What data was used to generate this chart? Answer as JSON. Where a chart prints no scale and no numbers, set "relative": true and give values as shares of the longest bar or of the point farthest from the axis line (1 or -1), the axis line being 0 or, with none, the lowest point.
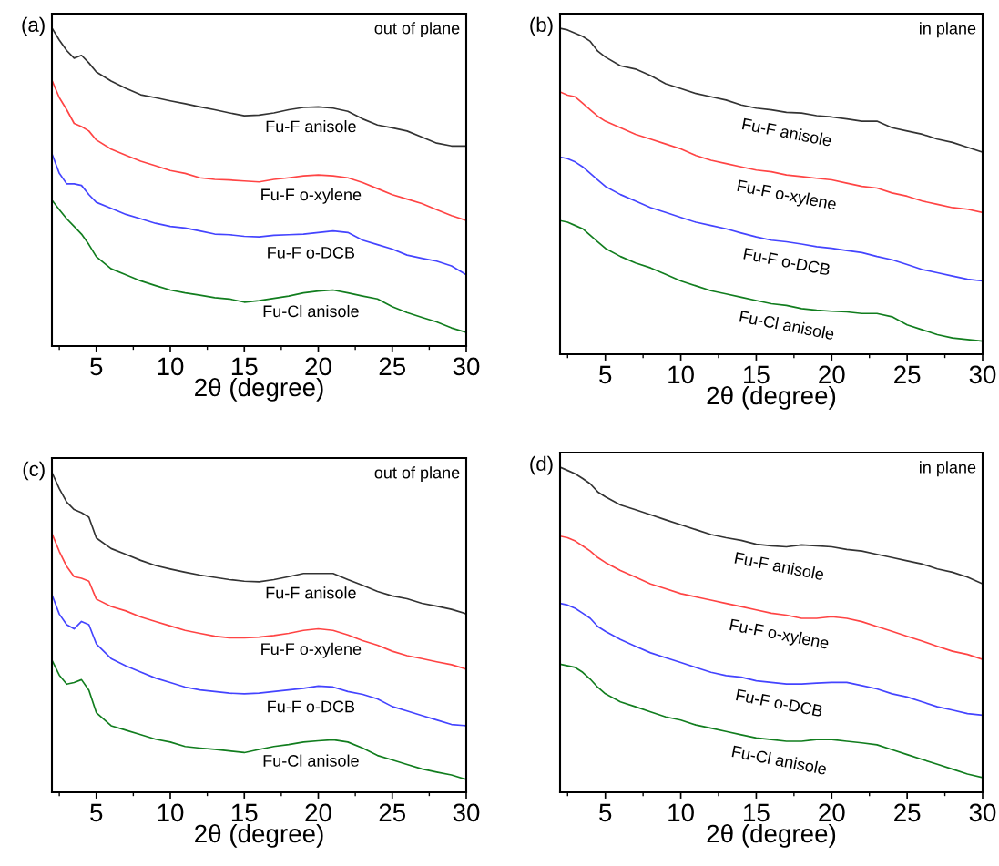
{
  "chart_data": [
    {
      "type": "line",
      "relative": true,
      "xlabel": "2θ (degree)",
      "annotations": [
        "(a)",
        "out of plane"
      ],
      "xlim": [
        2,
        30
      ],
      "xticks": [
        5,
        10,
        15,
        20,
        25,
        30
      ],
      "tick_labels": "x",
      "grid": false,
      "legend": false,
      "x": [
        2,
        2.5,
        3,
        3.5,
        4,
        4.5,
        5,
        6,
        7,
        8,
        9,
        10,
        11,
        12,
        13,
        14,
        15,
        16,
        17,
        18,
        19,
        20,
        21,
        22,
        23,
        24,
        25,
        26,
        27,
        28,
        29,
        30
      ],
      "series": [
        {
          "name": "Fu-F anisole",
          "color": "#333333",
          "values": [
            1.0,
            0.962,
            0.929,
            0.905,
            0.914,
            0.89,
            0.862,
            0.833,
            0.81,
            0.79,
            0.781,
            0.771,
            0.762,
            0.752,
            0.743,
            0.733,
            0.724,
            0.726,
            0.733,
            0.743,
            0.75,
            0.752,
            0.748,
            0.738,
            0.714,
            0.695,
            0.686,
            0.676,
            0.657,
            0.638,
            0.629,
            0.629
          ]
        },
        {
          "name": "Fu-F o-xylene",
          "color": "#ff4444",
          "values": [
            0.836,
            0.781,
            0.743,
            0.7,
            0.69,
            0.676,
            0.648,
            0.619,
            0.6,
            0.581,
            0.567,
            0.552,
            0.543,
            0.529,
            0.524,
            0.522,
            0.519,
            0.516,
            0.524,
            0.529,
            0.535,
            0.538,
            0.535,
            0.529,
            0.514,
            0.495,
            0.476,
            0.462,
            0.448,
            0.429,
            0.41,
            0.395
          ]
        },
        {
          "name": "Fu-F o-DCB",
          "color": "#4444ff",
          "values": [
            0.605,
            0.543,
            0.51,
            0.51,
            0.505,
            0.476,
            0.452,
            0.433,
            0.414,
            0.4,
            0.386,
            0.376,
            0.371,
            0.362,
            0.352,
            0.35,
            0.345,
            0.343,
            0.348,
            0.35,
            0.352,
            0.357,
            0.362,
            0.357,
            0.333,
            0.319,
            0.305,
            0.286,
            0.276,
            0.267,
            0.252,
            0.224
          ]
        },
        {
          "name": "Fu-Cl anisole",
          "color": "#117d1e",
          "values": [
            0.459,
            0.429,
            0.4,
            0.376,
            0.352,
            0.319,
            0.281,
            0.243,
            0.224,
            0.205,
            0.19,
            0.176,
            0.167,
            0.16,
            0.152,
            0.148,
            0.138,
            0.143,
            0.15,
            0.157,
            0.167,
            0.173,
            0.176,
            0.167,
            0.157,
            0.148,
            0.124,
            0.105,
            0.09,
            0.076,
            0.057,
            0.043
          ]
        }
      ]
    },
    {
      "type": "line",
      "relative": true,
      "xlabel": "2θ (degree)",
      "annotations": [
        "(b)",
        "in plane"
      ],
      "xlim": [
        2,
        30
      ],
      "xticks": [
        5,
        10,
        15,
        20,
        25,
        30
      ],
      "tick_labels": "x",
      "grid": false,
      "legend": false,
      "x": [
        2,
        2.5,
        3,
        3.5,
        4,
        4.5,
        5,
        6,
        7,
        8,
        9,
        10,
        11,
        12,
        13,
        14,
        15,
        16,
        17,
        18,
        19,
        20,
        21,
        22,
        23,
        24,
        25,
        26,
        27,
        28,
        29,
        30
      ],
      "series": [
        {
          "name": "Fu-F anisole",
          "color": "#333333",
          "values": [
            1.0,
            0.995,
            0.985,
            0.975,
            0.96,
            0.93,
            0.912,
            0.885,
            0.875,
            0.855,
            0.83,
            0.815,
            0.8,
            0.79,
            0.78,
            0.765,
            0.755,
            0.75,
            0.742,
            0.74,
            0.732,
            0.728,
            0.722,
            0.715,
            0.715,
            0.695,
            0.685,
            0.675,
            0.66,
            0.65,
            0.635,
            0.62
          ]
        },
        {
          "name": "Fu-F o-xylene",
          "color": "#ff4444",
          "values": [
            0.805,
            0.795,
            0.79,
            0.77,
            0.75,
            0.73,
            0.715,
            0.695,
            0.675,
            0.66,
            0.645,
            0.63,
            0.61,
            0.595,
            0.585,
            0.575,
            0.565,
            0.56,
            0.55,
            0.545,
            0.54,
            0.535,
            0.525,
            0.515,
            0.51,
            0.495,
            0.485,
            0.47,
            0.46,
            0.45,
            0.445,
            0.435
          ]
        },
        {
          "name": "Fu-F o-DCB",
          "color": "#4444ff",
          "values": [
            0.605,
            0.6,
            0.59,
            0.575,
            0.555,
            0.535,
            0.515,
            0.49,
            0.47,
            0.45,
            0.435,
            0.42,
            0.405,
            0.395,
            0.385,
            0.372,
            0.36,
            0.35,
            0.345,
            0.338,
            0.33,
            0.325,
            0.318,
            0.312,
            0.3,
            0.29,
            0.275,
            0.26,
            0.25,
            0.24,
            0.23,
            0.225
          ]
        },
        {
          "name": "Fu-Cl anisole",
          "color": "#117d1e",
          "values": [
            0.41,
            0.405,
            0.395,
            0.385,
            0.365,
            0.345,
            0.325,
            0.3,
            0.28,
            0.265,
            0.245,
            0.225,
            0.21,
            0.195,
            0.185,
            0.175,
            0.165,
            0.155,
            0.15,
            0.14,
            0.135,
            0.132,
            0.13,
            0.125,
            0.125,
            0.115,
            0.09,
            0.075,
            0.06,
            0.05,
            0.045,
            0.04
          ]
        }
      ]
    },
    {
      "type": "line",
      "relative": true,
      "xlabel": "2θ (degree)",
      "annotations": [
        "(c)",
        "out of plane"
      ],
      "xlim": [
        2,
        30
      ],
      "xticks": [
        5,
        10,
        15,
        20,
        25,
        30
      ],
      "tick_labels": "x",
      "grid": false,
      "legend": false,
      "x": [
        2,
        2.5,
        3,
        3.5,
        4,
        4.5,
        5,
        6,
        7,
        8,
        9,
        10,
        11,
        12,
        13,
        14,
        15,
        16,
        17,
        18,
        19,
        20,
        21,
        22,
        23,
        24,
        25,
        26,
        27,
        28,
        29,
        30
      ],
      "series": [
        {
          "name": "Fu-F anisole",
          "color": "#333333",
          "values": [
            1.0,
            0.949,
            0.907,
            0.884,
            0.874,
            0.86,
            0.795,
            0.762,
            0.744,
            0.725,
            0.709,
            0.698,
            0.688,
            0.679,
            0.672,
            0.665,
            0.66,
            0.658,
            0.665,
            0.674,
            0.684,
            0.684,
            0.684,
            0.665,
            0.647,
            0.628,
            0.614,
            0.605,
            0.591,
            0.582,
            0.572,
            0.558
          ]
        },
        {
          "name": "Fu-F o-xylene",
          "color": "#ff4444",
          "values": [
            0.809,
            0.753,
            0.706,
            0.674,
            0.669,
            0.66,
            0.604,
            0.581,
            0.567,
            0.548,
            0.534,
            0.52,
            0.506,
            0.497,
            0.488,
            0.483,
            0.483,
            0.485,
            0.49,
            0.497,
            0.506,
            0.511,
            0.506,
            0.492,
            0.474,
            0.46,
            0.441,
            0.427,
            0.418,
            0.408,
            0.399,
            0.385
          ]
        },
        {
          "name": "Fu-F o-DCB",
          "color": "#4444ff",
          "values": [
            0.618,
            0.557,
            0.524,
            0.511,
            0.534,
            0.524,
            0.464,
            0.418,
            0.395,
            0.376,
            0.357,
            0.343,
            0.329,
            0.32,
            0.315,
            0.31,
            0.308,
            0.31,
            0.315,
            0.32,
            0.325,
            0.332,
            0.329,
            0.315,
            0.306,
            0.292,
            0.268,
            0.254,
            0.24,
            0.226,
            0.212,
            0.208
          ]
        },
        {
          "name": "Fu-Cl anisole",
          "color": "#117d1e",
          "values": [
            0.413,
            0.366,
            0.338,
            0.343,
            0.352,
            0.319,
            0.249,
            0.208,
            0.194,
            0.18,
            0.166,
            0.157,
            0.143,
            0.138,
            0.134,
            0.129,
            0.124,
            0.134,
            0.143,
            0.149,
            0.157,
            0.161,
            0.164,
            0.157,
            0.138,
            0.115,
            0.101,
            0.087,
            0.073,
            0.063,
            0.054,
            0.04
          ]
        }
      ]
    },
    {
      "type": "line",
      "relative": true,
      "xlabel": "2θ (degree)",
      "annotations": [
        "(d)",
        "in plane"
      ],
      "xlim": [
        2,
        30
      ],
      "xticks": [
        5,
        10,
        15,
        20,
        25,
        30
      ],
      "tick_labels": "x",
      "grid": false,
      "legend": false,
      "x": [
        2,
        2.5,
        3,
        3.5,
        4,
        4.5,
        5,
        6,
        7,
        8,
        9,
        10,
        11,
        12,
        13,
        14,
        15,
        16,
        17,
        18,
        19,
        20,
        21,
        22,
        23,
        24,
        25,
        26,
        27,
        28,
        29,
        30
      ],
      "series": [
        {
          "name": "Fu-F anisole",
          "color": "#333333",
          "values": [
            1.0,
            0.99,
            0.98,
            0.965,
            0.949,
            0.924,
            0.909,
            0.884,
            0.869,
            0.854,
            0.838,
            0.823,
            0.808,
            0.793,
            0.783,
            0.775,
            0.763,
            0.758,
            0.755,
            0.761,
            0.758,
            0.755,
            0.747,
            0.742,
            0.732,
            0.722,
            0.712,
            0.702,
            0.687,
            0.677,
            0.662,
            0.641
          ]
        },
        {
          "name": "Fu-F o-xylene",
          "color": "#ff4444",
          "values": [
            0.788,
            0.783,
            0.773,
            0.758,
            0.742,
            0.722,
            0.707,
            0.682,
            0.662,
            0.641,
            0.626,
            0.611,
            0.601,
            0.591,
            0.581,
            0.571,
            0.561,
            0.551,
            0.545,
            0.535,
            0.535,
            0.54,
            0.535,
            0.525,
            0.51,
            0.495,
            0.48,
            0.465,
            0.449,
            0.434,
            0.424,
            0.409
          ]
        },
        {
          "name": "Fu-F o-DCB",
          "color": "#4444ff",
          "values": [
            0.581,
            0.576,
            0.566,
            0.551,
            0.535,
            0.51,
            0.495,
            0.47,
            0.449,
            0.429,
            0.414,
            0.399,
            0.384,
            0.369,
            0.359,
            0.354,
            0.343,
            0.338,
            0.333,
            0.333,
            0.336,
            0.338,
            0.338,
            0.328,
            0.318,
            0.303,
            0.293,
            0.278,
            0.263,
            0.253,
            0.242,
            0.237
          ]
        },
        {
          "name": "Fu-Cl anisole",
          "color": "#117d1e",
          "values": [
            0.394,
            0.389,
            0.384,
            0.369,
            0.348,
            0.323,
            0.303,
            0.278,
            0.263,
            0.247,
            0.232,
            0.222,
            0.207,
            0.197,
            0.187,
            0.177,
            0.167,
            0.162,
            0.157,
            0.157,
            0.162,
            0.162,
            0.157,
            0.152,
            0.146,
            0.131,
            0.116,
            0.101,
            0.086,
            0.071,
            0.056,
            0.045
          ]
        }
      ]
    }
  ]
}
